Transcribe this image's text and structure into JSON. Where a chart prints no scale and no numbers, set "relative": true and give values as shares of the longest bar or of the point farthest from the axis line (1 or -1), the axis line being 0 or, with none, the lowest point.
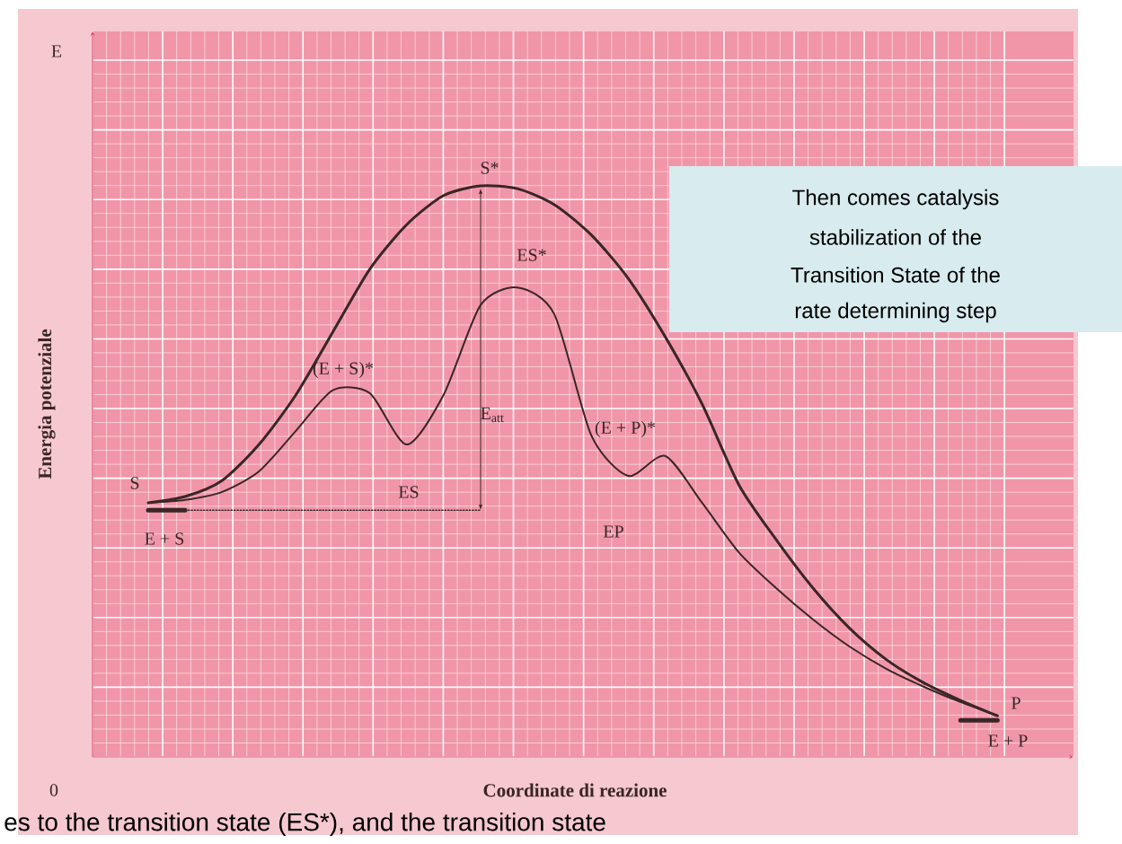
{
  "chart_data": {
    "type": "line",
    "relative": true,
    "xlabel": "Coordinate di reazione",
    "ylabel": "Energia potenziale",
    "grid": true,
    "categories": [
      null,
      null,
      null,
      null,
      null,
      null,
      null,
      null,
      null,
      null,
      null,
      null,
      null,
      null,
      null,
      null,
      null,
      null,
      null,
      null,
      null,
      null,
      null,
      null
    ],
    "series": [
      {
        "color": "#3a2626",
        "values": [
          0.445,
          0.456,
          0.484,
          0.547,
          0.634,
          0.744,
          0.854,
          0.932,
          0.983,
          1.0,
          0.995,
          0.967,
          0.914,
          0.838,
          0.736,
          0.618,
          0.476,
          0.381,
          0.296,
          0.225,
          0.17,
          0.13,
          0.099,
          0.072
        ]
      },
      {
        "color": "#3a2626",
        "values": [
          0.445,
          0.45,
          0.464,
          0.5,
          0.571,
          0.642,
          0.637,
          0.547,
          0.634,
          0.791,
          0.822,
          0.775,
          0.563,
          0.492,
          0.527,
          0.445,
          0.358,
          0.296,
          0.241,
          0.193,
          0.154,
          0.123,
          0.096,
          0.072
        ]
      },
      {
        "color": "#3a2626",
        "values": [
          0.432,
          0.432,
          null,
          null,
          null,
          null,
          null,
          null,
          null,
          null,
          null,
          null,
          null,
          null,
          null,
          null,
          null,
          null,
          null,
          null,
          null,
          null,
          0.064,
          0.064
        ]
      },
      {
        "color": "#3a2626",
        "line_style": "dotted",
        "values": [
          null,
          0.432,
          0.432,
          0.432,
          0.432,
          0.432,
          0.432,
          0.432,
          0.432,
          0.432,
          null,
          null,
          null,
          null,
          null,
          null,
          null,
          null,
          null,
          null,
          null,
          null,
          null,
          null
        ]
      }
    ],
    "annotations": [
      "S*",
      "ES*",
      "(E + S)*",
      "ES",
      "E$_{att}$",
      "(E + P)*",
      "EP",
      "S",
      "E + S",
      "P",
      "E + P",
      "E",
      "0",
      "Then comes catalysis",
      "stabilization of the",
      "Transition State of the",
      "rate determining step",
      "es to the transition state (ES*), and the transition state"
    ]
  }
}
